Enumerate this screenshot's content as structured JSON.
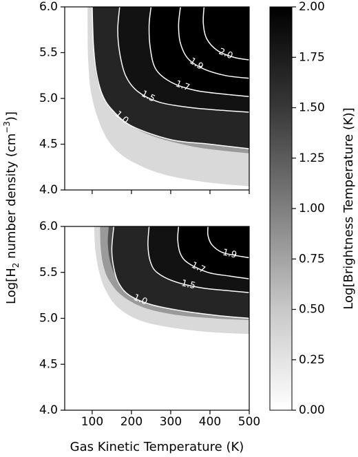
{
  "chart_data": [
    {
      "type": "heatmap",
      "panel": "top",
      "x_range": [
        30,
        500
      ],
      "y_range": [
        4.0,
        6.0
      ],
      "x_ticks": [],
      "y_ticks": [
        "4.0",
        "4.5",
        "5.0",
        "5.5",
        "6.0"
      ],
      "field_reference_peak": 2.0,
      "contours": [
        {
          "level": 1.0,
          "label": "1.0",
          "points": [
            [
              100,
              6.0
            ],
            [
              103,
              5.6
            ],
            [
              110,
              5.3
            ],
            [
              125,
              5.05
            ],
            [
              150,
              4.88
            ],
            [
              200,
              4.7
            ],
            [
              300,
              4.55
            ],
            [
              400,
              4.5
            ],
            [
              500,
              4.45
            ]
          ]
        },
        {
          "level": 1.5,
          "label": "1.5",
          "points": [
            [
              170,
              6.0
            ],
            [
              165,
              5.75
            ],
            [
              170,
              5.5
            ],
            [
              185,
              5.25
            ],
            [
              215,
              5.08
            ],
            [
              270,
              4.96
            ],
            [
              350,
              4.9
            ],
            [
              430,
              4.87
            ],
            [
              500,
              4.85
            ]
          ]
        },
        {
          "level": 1.7,
          "label": "1.7",
          "points": [
            [
              250,
              6.0
            ],
            [
              245,
              5.8
            ],
            [
              248,
              5.55
            ],
            [
              262,
              5.32
            ],
            [
              300,
              5.18
            ],
            [
              360,
              5.09
            ],
            [
              430,
              5.05
            ],
            [
              500,
              5.02
            ]
          ]
        },
        {
          "level": 1.9,
          "label": "1.9",
          "points": [
            [
              325,
              6.0
            ],
            [
              320,
              5.8
            ],
            [
              325,
              5.6
            ],
            [
              345,
              5.43
            ],
            [
              385,
              5.32
            ],
            [
              440,
              5.25
            ],
            [
              500,
              5.22
            ]
          ]
        },
        {
          "level": 2.0,
          "label": "2.0",
          "points": [
            [
              385,
              6.0
            ],
            [
              383,
              5.82
            ],
            [
              392,
              5.65
            ],
            [
              420,
              5.52
            ],
            [
              460,
              5.45
            ],
            [
              500,
              5.42
            ]
          ]
        }
      ],
      "edge_curves": [
        [
          [
            88,
            6.0
          ],
          [
            90,
            5.4
          ],
          [
            100,
            5.0
          ],
          [
            130,
            4.62
          ],
          [
            170,
            4.4
          ],
          [
            230,
            4.25
          ],
          [
            300,
            4.15
          ],
          [
            400,
            4.08
          ],
          [
            500,
            4.04
          ]
        ],
        [
          [
            100,
            6.0
          ],
          [
            102,
            5.6
          ],
          [
            108,
            5.3
          ],
          [
            120,
            5.1
          ],
          [
            145,
            4.9
          ],
          [
            190,
            4.72
          ],
          [
            260,
            4.58
          ],
          [
            350,
            4.48
          ],
          [
            430,
            4.43
          ],
          [
            500,
            4.4
          ]
        ],
        [
          [
            125,
            6.0
          ],
          [
            123,
            5.7
          ],
          [
            128,
            5.45
          ],
          [
            142,
            5.2
          ],
          [
            170,
            5.0
          ],
          [
            220,
            4.85
          ],
          [
            300,
            4.75
          ],
          [
            400,
            4.7
          ],
          [
            500,
            4.68
          ]
        ]
      ]
    },
    {
      "type": "heatmap",
      "panel": "bottom",
      "x_range": [
        30,
        500
      ],
      "y_range": [
        4.0,
        6.0
      ],
      "x_ticks": [
        "100",
        "200",
        "300",
        "400",
        "500"
      ],
      "y_ticks": [
        "4.0",
        "4.5",
        "5.0",
        "5.5",
        "6.0"
      ],
      "xlabel": "Gas Kinetic Temperature (K)",
      "contours": [
        {
          "level": 1.0,
          "label": "1.0",
          "points": [
            [
              155,
              6.0
            ],
            [
              150,
              5.75
            ],
            [
              155,
              5.55
            ],
            [
              168,
              5.38
            ],
            [
              195,
              5.25
            ],
            [
              250,
              5.15
            ],
            [
              330,
              5.08
            ],
            [
              420,
              5.03
            ],
            [
              500,
              5.0
            ]
          ]
        },
        {
          "level": 1.5,
          "label": "1.5",
          "points": [
            [
              245,
              6.0
            ],
            [
              242,
              5.8
            ],
            [
              248,
              5.62
            ],
            [
              265,
              5.5
            ],
            [
              310,
              5.4
            ],
            [
              380,
              5.33
            ],
            [
              450,
              5.3
            ],
            [
              500,
              5.28
            ]
          ]
        },
        {
          "level": 1.7,
          "label": "1.7",
          "points": [
            [
              320,
              6.0
            ],
            [
              318,
              5.85
            ],
            [
              325,
              5.7
            ],
            [
              345,
              5.6
            ],
            [
              395,
              5.5
            ],
            [
              450,
              5.46
            ],
            [
              500,
              5.43
            ]
          ]
        },
        {
          "level": 1.9,
          "label": "1.9",
          "points": [
            [
              395,
              6.0
            ],
            [
              395,
              5.9
            ],
            [
              405,
              5.8
            ],
            [
              430,
              5.72
            ],
            [
              470,
              5.68
            ],
            [
              500,
              5.66
            ]
          ]
        }
      ],
      "edge_curves": [
        [
          [
            105,
            6.0
          ],
          [
            108,
            5.75
          ],
          [
            118,
            5.5
          ],
          [
            135,
            5.3
          ],
          [
            165,
            5.12
          ],
          [
            220,
            4.98
          ],
          [
            300,
            4.9
          ],
          [
            400,
            4.85
          ],
          [
            500,
            4.83
          ]
        ],
        [
          [
            120,
            6.0
          ],
          [
            122,
            5.75
          ],
          [
            130,
            5.55
          ],
          [
            145,
            5.4
          ],
          [
            175,
            5.25
          ],
          [
            230,
            5.12
          ],
          [
            310,
            5.04
          ],
          [
            410,
            5.0
          ],
          [
            500,
            4.98
          ]
        ],
        [
          [
            142,
            6.0
          ],
          [
            140,
            5.8
          ],
          [
            147,
            5.6
          ],
          [
            162,
            5.45
          ],
          [
            195,
            5.32
          ],
          [
            250,
            5.22
          ],
          [
            330,
            5.15
          ],
          [
            420,
            5.12
          ],
          [
            500,
            5.1
          ]
        ]
      ]
    }
  ],
  "shared_ylabel": {
    "prefix": "Log[H",
    "sub": "2",
    "mid": " number density (cm",
    "sup": "−3",
    "suffix": ")]"
  },
  "colorbar": {
    "label": "Log[Brightness Temperature (K)]",
    "range": [
      0.0,
      2.0
    ],
    "ticks": [
      "0.00",
      "0.25",
      "0.50",
      "0.75",
      "1.00",
      "1.25",
      "1.50",
      "1.75",
      "2.00"
    ],
    "colormap": "grayscale: 0 = white, 2 = black"
  }
}
